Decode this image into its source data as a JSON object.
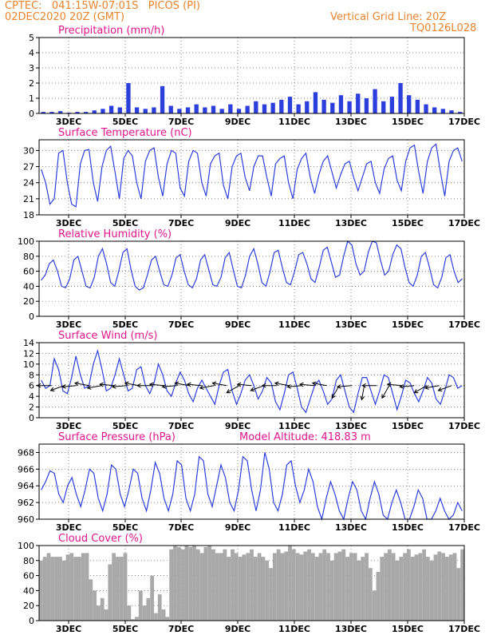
{
  "header": {
    "line1": "CPTEC:   041:15W-07:01S   PICOS (PI)",
    "line2": "02DEC2020 20Z (GMT)",
    "right1": "Vertical Grid Line: 20Z",
    "right2": "TQ0126L028"
  },
  "colors": {
    "header": "#e8842c",
    "title": "#e0158c",
    "line": "#2b3fdc",
    "cloud": "#a9a9a9",
    "wind_arrow": "#000000"
  },
  "x_tick_labels": [
    "3DEC",
    "5DEC",
    "7DEC",
    "9DEC",
    "11DEC",
    "13DEC",
    "15DEC",
    "17DEC"
  ],
  "chart_data": [
    {
      "id": "precip",
      "type": "bar",
      "title": "Precipitation (mm/h)",
      "ylim": [
        0,
        5
      ],
      "yticks": [
        "0",
        "1",
        "2",
        "3",
        "4",
        "5"
      ],
      "series": [
        {
          "values": [
            0.1,
            0.1,
            0.15,
            0.05,
            0.1,
            0.1,
            0.2,
            0.3,
            0.5,
            0.4,
            2.0,
            0.4,
            0.3,
            0.4,
            1.8,
            0.5,
            0.3,
            0.4,
            0.6,
            0.4,
            0.5,
            0.3,
            0.6,
            0.3,
            0.5,
            0.8,
            0.6,
            0.7,
            0.9,
            1.1,
            0.6,
            0.8,
            1.4,
            0.9,
            0.7,
            1.2,
            0.8,
            1.3,
            1.0,
            1.6,
            0.8,
            1.1,
            2.0,
            1.2,
            0.9,
            0.6,
            0.4,
            0.3,
            0.2,
            0.1
          ]
        }
      ]
    },
    {
      "id": "temp",
      "type": "line",
      "title": "Surface Temperature (nC)",
      "ylim": [
        18,
        32
      ],
      "yticks": [
        "18",
        "21",
        "24",
        "27",
        "30"
      ],
      "series": [
        {
          "values": [
            26.5,
            24.0,
            20.0,
            21.0,
            29.5,
            30.0,
            24.0,
            20.0,
            19.5,
            27.5,
            30.0,
            30.2,
            24.0,
            20.5,
            27.0,
            30.0,
            30.8,
            26.0,
            21.0,
            28.5,
            30.0,
            29.0,
            24.0,
            21.0,
            28.0,
            30.0,
            30.5,
            25.0,
            21.5,
            27.5,
            30.0,
            29.5,
            23.0,
            21.5,
            28.0,
            30.0,
            29.5,
            24.0,
            21.5,
            27.5,
            29.0,
            29.5,
            23.5,
            21.0,
            27.0,
            29.0,
            29.5,
            25.0,
            22.5,
            27.0,
            29.0,
            29.0,
            25.0,
            21.5,
            27.5,
            28.5,
            29.0,
            24.0,
            21.0,
            26.5,
            28.5,
            29.5,
            25.0,
            22.0,
            25.5,
            28.0,
            29.0,
            26.0,
            23.0,
            25.5,
            27.5,
            28.0,
            25.0,
            22.5,
            25.0,
            27.5,
            28.0,
            24.0,
            22.0,
            26.5,
            28.5,
            29.0,
            24.5,
            22.5,
            28.0,
            30.5,
            31.0,
            26.0,
            22.0,
            28.0,
            30.5,
            31.2,
            26.0,
            21.5,
            28.0,
            30.0,
            30.5,
            28.0
          ]
        }
      ]
    },
    {
      "id": "rh",
      "type": "line",
      "title": "Relative Humidity (%)",
      "ylim": [
        0,
        100
      ],
      "yticks": [
        "0",
        "20",
        "40",
        "60",
        "80",
        "100"
      ],
      "series": [
        {
          "values": [
            48,
            55,
            70,
            75,
            60,
            40,
            38,
            50,
            75,
            80,
            60,
            40,
            38,
            52,
            80,
            90,
            70,
            45,
            40,
            60,
            85,
            90,
            62,
            40,
            35,
            38,
            55,
            75,
            80,
            60,
            42,
            40,
            55,
            78,
            82,
            60,
            42,
            38,
            50,
            75,
            82,
            62,
            42,
            40,
            52,
            78,
            85,
            62,
            40,
            38,
            55,
            80,
            90,
            70,
            45,
            40,
            60,
            85,
            88,
            65,
            45,
            42,
            60,
            82,
            85,
            70,
            50,
            45,
            65,
            88,
            92,
            72,
            52,
            55,
            80,
            100,
            95,
            70,
            55,
            60,
            85,
            100,
            98,
            75,
            55,
            60,
            82,
            95,
            90,
            65,
            45,
            40,
            55,
            80,
            85,
            65,
            42,
            38,
            52,
            78,
            82,
            60,
            45,
            50
          ]
        }
      ]
    },
    {
      "id": "wind",
      "type": "line",
      "title": "Surface Wind (m/s)",
      "ylim": [
        0,
        14
      ],
      "yticks": [
        "0",
        "1",
        "2",
        "3",
        "4",
        "5",
        "6",
        "7",
        "8",
        "9",
        "10",
        "11",
        "12",
        "13",
        "14"
      ],
      "y_tick_display": [
        "0",
        "2",
        "4",
        "6",
        "8",
        "10",
        "12",
        "14"
      ],
      "series": [
        {
          "values": [
            7.0,
            5.5,
            6.0,
            11.0,
            9.0,
            5.0,
            4.5,
            7.5,
            11.5,
            8.0,
            5.5,
            6.0,
            10.0,
            12.5,
            9.0,
            5.0,
            5.5,
            8.0,
            11.0,
            8.0,
            5.0,
            5.5,
            9.0,
            9.5,
            6.0,
            4.5,
            6.5,
            10.0,
            8.0,
            5.0,
            4.0,
            6.5,
            8.5,
            7.0,
            4.5,
            3.0,
            5.5,
            7.0,
            5.5,
            4.0,
            2.5,
            6.0,
            8.5,
            9.0,
            5.0,
            2.5,
            4.5,
            7.0,
            8.0,
            6.0,
            3.5,
            5.0,
            7.5,
            6.5,
            3.0,
            1.5,
            4.5,
            8.0,
            8.5,
            5.5,
            2.0,
            1.0,
            3.5,
            6.0,
            7.0,
            5.0,
            2.5,
            3.5,
            7.0,
            8.0,
            5.0,
            2.0,
            1.0,
            4.5,
            7.5,
            7.5,
            5.0,
            2.5,
            5.0,
            8.0,
            7.5,
            4.5,
            1.5,
            4.0,
            7.0,
            6.5,
            4.5,
            3.0,
            5.0,
            7.5,
            6.5,
            3.5,
            2.5,
            5.0,
            8.0,
            7.5,
            5.5,
            6.0
          ]
        }
      ],
      "wind_arrows": [
        {
          "x": 0.5,
          "dir": 90
        },
        {
          "x": 1.0,
          "dir": 70
        },
        {
          "x": 1.5,
          "dir": 85
        },
        {
          "x": 2.0,
          "dir": 100
        },
        {
          "x": 2.5,
          "dir": 80
        },
        {
          "x": 3.0,
          "dir": 95
        },
        {
          "x": 3.5,
          "dir": 85
        },
        {
          "x": 4.0,
          "dir": 100
        },
        {
          "x": 4.5,
          "dir": 90
        },
        {
          "x": 5.0,
          "dir": 95
        },
        {
          "x": 5.5,
          "dir": 85
        },
        {
          "x": 6.0,
          "dir": 100
        },
        {
          "x": 6.5,
          "dir": 95
        },
        {
          "x": 7.0,
          "dir": 80
        },
        {
          "x": 7.5,
          "dir": 100
        },
        {
          "x": 8.0,
          "dir": 60
        },
        {
          "x": 8.5,
          "dir": 95
        },
        {
          "x": 9.0,
          "dir": 70
        },
        {
          "x": 9.5,
          "dir": 90
        },
        {
          "x": 10.0,
          "dir": 100
        },
        {
          "x": 10.5,
          "dir": 85
        },
        {
          "x": 11.0,
          "dir": 95
        },
        {
          "x": 11.5,
          "dir": 100
        },
        {
          "x": 12.0,
          "dir": 30
        },
        {
          "x": 12.5,
          "dir": 85
        },
        {
          "x": 13.0,
          "dir": 10
        },
        {
          "x": 13.5,
          "dir": 90
        },
        {
          "x": 14.0,
          "dir": 30
        },
        {
          "x": 14.5,
          "dir": 95
        },
        {
          "x": 15.0,
          "dir": 85
        },
        {
          "x": 15.5,
          "dir": 60
        },
        {
          "x": 16.0,
          "dir": 80
        },
        {
          "x": 16.5,
          "dir": 70
        }
      ]
    },
    {
      "id": "press",
      "type": "line",
      "title": "Surface Pressure (hPa)",
      "extra_label": "Model Altitude: 418.83 m",
      "ylim": [
        960,
        969
      ],
      "yticks": [
        "960",
        "962",
        "964",
        "966",
        "968"
      ],
      "series": [
        {
          "values": [
            963.5,
            964.5,
            965.8,
            965.5,
            963.0,
            962.0,
            964.0,
            965.0,
            963.0,
            961.5,
            963.5,
            966.0,
            965.5,
            962.5,
            961.0,
            963.0,
            966.5,
            966.0,
            963.0,
            961.5,
            963.5,
            966.0,
            965.5,
            962.5,
            961.0,
            963.5,
            966.8,
            965.5,
            962.5,
            961.0,
            963.0,
            967.0,
            966.5,
            962.5,
            961.0,
            963.0,
            967.5,
            967.0,
            963.0,
            961.5,
            964.0,
            966.5,
            965.0,
            962.0,
            961.0,
            963.5,
            967.5,
            967.0,
            963.5,
            961.0,
            963.5,
            968.0,
            966.0,
            962.0,
            961.0,
            963.0,
            966.5,
            967.0,
            964.0,
            962.0,
            963.5,
            966.0,
            964.5,
            961.5,
            960.0,
            962.5,
            964.5,
            963.0,
            961.0,
            960.0,
            962.5,
            964.5,
            963.5,
            961.0,
            960.0,
            962.5,
            964.5,
            963.0,
            960.5,
            959.5,
            962.0,
            963.5,
            962.0,
            960.0,
            959.5,
            961.5,
            963.5,
            962.5,
            960.0,
            959.5,
            961.0,
            962.5,
            961.0,
            959.8,
            960.5,
            962.0,
            961.0
          ]
        }
      ]
    },
    {
      "id": "cloud",
      "type": "bar",
      "title": "Cloud Cover (%)",
      "ylim": [
        0,
        100
      ],
      "yticks": [
        "0",
        "20",
        "40",
        "60",
        "80",
        "100"
      ],
      "series": [
        {
          "values": [
            80,
            85,
            90,
            85,
            85,
            85,
            80,
            88,
            90,
            85,
            85,
            90,
            90,
            55,
            40,
            20,
            30,
            15,
            75,
            90,
            85,
            85,
            90,
            20,
            2,
            5,
            40,
            20,
            30,
            60,
            10,
            35,
            15,
            5,
            95,
            100,
            98,
            95,
            100,
            98,
            100,
            95,
            90,
            98,
            100,
            95,
            90,
            90,
            95,
            85,
            95,
            90,
            85,
            88,
            90,
            95,
            85,
            90,
            85,
            80,
            70,
            90,
            95,
            90,
            92,
            100,
            95,
            90,
            88,
            92,
            95,
            90,
            85,
            90,
            95,
            90,
            80,
            90,
            92,
            95,
            85,
            90,
            90,
            80,
            85,
            90,
            70,
            40,
            65,
            85,
            90,
            95,
            90,
            80,
            85,
            90,
            95,
            85,
            88,
            90,
            95,
            85,
            80,
            88,
            92,
            90,
            85,
            88,
            90,
            70,
            95
          ]
        }
      ]
    }
  ]
}
